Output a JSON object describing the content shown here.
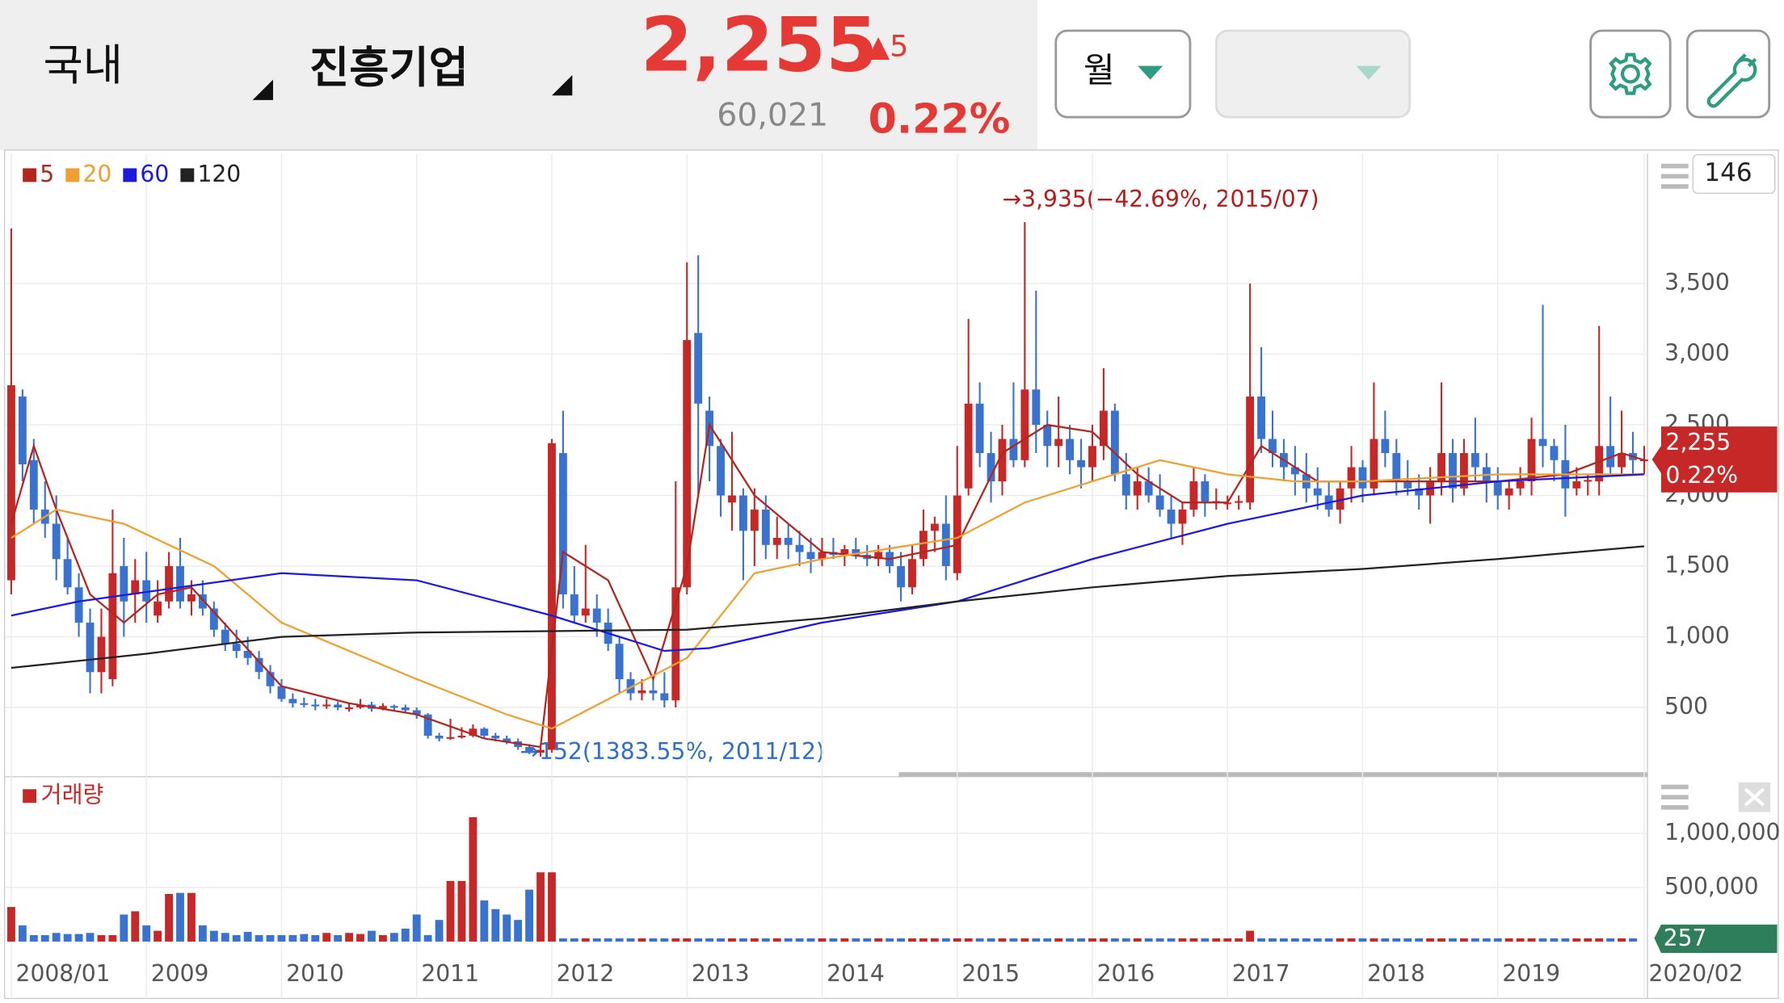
{
  "header": {
    "market": "국내",
    "stock": "진흥기업",
    "price": "2,255",
    "change": "▲5",
    "volume": "60,021",
    "change_pct": "0.22%",
    "period": "월"
  },
  "chart_data": [
    {
      "type": "candlestick",
      "count": 146,
      "up_color": "#c62828",
      "down_color": "#3a72d0",
      "grid": true,
      "last_price_label": "2,255",
      "last_change_label": "0.22%",
      "annotations": [
        {
          "text": "→3,935(−42.69%, 2015/07)"
        },
        {
          "text": "→152(1383.55%, 2011/12)"
        }
      ],
      "xlim": [
        -1,
        146
      ],
      "xticks": [
        {
          "value": 0,
          "label": "2008/01"
        },
        {
          "value": 12,
          "label": "2009"
        },
        {
          "value": 24,
          "label": "2010"
        },
        {
          "value": 36,
          "label": "2011"
        },
        {
          "value": 48,
          "label": "2012"
        },
        {
          "value": 60,
          "label": "2013"
        },
        {
          "value": 72,
          "label": "2014"
        },
        {
          "value": 84,
          "label": "2015"
        },
        {
          "value": 96,
          "label": "2016"
        },
        {
          "value": 108,
          "label": "2017"
        },
        {
          "value": 120,
          "label": "2018"
        },
        {
          "value": 132,
          "label": "2019"
        },
        {
          "value": 145,
          "label": "2020/02"
        }
      ],
      "ylim": [
        50,
        4420
      ],
      "yticks": [
        500,
        {
          "value": 1000,
          "label": "1,000"
        },
        {
          "value": 1500,
          "label": "1,500"
        },
        {
          "value": 2000,
          "label": "2,000"
        },
        {
          "value": 2500,
          "label": "2,500"
        },
        {
          "value": 3000,
          "label": "3,000"
        },
        {
          "value": 3500,
          "label": "3,500"
        }
      ],
      "open": [
        1400,
        2700,
        2250,
        1900,
        1800,
        1550,
        1350,
        1100,
        750,
        700,
        1500,
        1300,
        1400,
        1150,
        1250,
        1500,
        1250,
        1300,
        1200,
        1050,
        950,
        900,
        850,
        750,
        650,
        560,
        530,
        520,
        510,
        520,
        500,
        500,
        520,
        490,
        510,
        500,
        480,
        450,
        300,
        280,
        290,
        300,
        350,
        300,
        280,
        260,
        220,
        180,
        200,
        2300,
        1300,
        1150,
        1200,
        1100,
        950,
        700,
        600,
        620,
        600,
        550,
        1350,
        3150,
        2600,
        2350,
        1950,
        2000,
        1750,
        1900,
        1650,
        1700,
        1650,
        1600,
        1550,
        1600,
        1580,
        1620,
        1580,
        1550,
        1600,
        1500,
        1350,
        1550,
        1750,
        1800,
        1450,
        2050,
        2650,
        2300,
        2100,
        2400,
        2250,
        2750,
        2500,
        2350,
        2400,
        2250,
        2200,
        2350,
        2600,
        2150,
        2000,
        2100,
        2000,
        1900,
        1800,
        1900,
        2100,
        1950,
        1950,
        1950,
        1950,
        2700,
        2400,
        2300,
        2200,
        2150,
        2050,
        2000,
        1900,
        2050,
        2200,
        2050,
        2400,
        2300,
        2100,
        2050,
        2000,
        2100,
        2300,
        2050,
        2300,
        2200,
        2100,
        2000,
        2050,
        2100,
        2400,
        2350,
        2250,
        2050,
        2100,
        2100,
        2350,
        2200,
        2300,
        2250
      ],
      "high": [
        3890,
        2750,
        2400,
        2100,
        2000,
        1700,
        1450,
        1200,
        1200,
        1900,
        1700,
        1550,
        1600,
        1400,
        1600,
        1700,
        1400,
        1400,
        1250,
        1100,
        1050,
        1000,
        900,
        800,
        700,
        600,
        570,
        560,
        560,
        540,
        530,
        560,
        540,
        530,
        520,
        520,
        500,
        460,
        320,
        420,
        360,
        380,
        360,
        320,
        300,
        280,
        240,
        220,
        2400,
        2600,
        1500,
        1650,
        1300,
        1200,
        1000,
        750,
        700,
        700,
        750,
        2100,
        3650,
        3700,
        2700,
        2400,
        2450,
        2050,
        2050,
        2000,
        1850,
        1800,
        1750,
        1700,
        1700,
        1700,
        1650,
        1700,
        1650,
        1650,
        1650,
        1600,
        1650,
        1900,
        1850,
        2000,
        2350,
        3250,
        2800,
        2450,
        2500,
        2800,
        3935,
        3450,
        2600,
        2700,
        2500,
        2400,
        2500,
        2900,
        2650,
        2300,
        2200,
        2200,
        2150,
        2000,
        1950,
        2200,
        2150,
        2050,
        2000,
        2000,
        3500,
        3050,
        2600,
        2400,
        2350,
        2300,
        2200,
        2100,
        2100,
        2350,
        2250,
        2800,
        2600,
        2400,
        2250,
        2150,
        2200,
        2800,
        2400,
        2400,
        2550,
        2300,
        2200,
        2100,
        2200,
        2550,
        3350,
        2400,
        2500,
        2200,
        2150,
        3200,
        2700,
        2600,
        2450,
        2350
      ],
      "low": [
        1300,
        2100,
        1800,
        1700,
        1400,
        1300,
        1000,
        600,
        600,
        650,
        1000,
        1100,
        1100,
        1100,
        1200,
        1200,
        1150,
        1150,
        1000,
        900,
        850,
        800,
        700,
        600,
        540,
        500,
        500,
        480,
        490,
        480,
        470,
        490,
        470,
        480,
        470,
        460,
        420,
        280,
        260,
        270,
        280,
        290,
        280,
        260,
        240,
        200,
        170,
        152,
        180,
        1200,
        1100,
        1100,
        1000,
        900,
        600,
        550,
        550,
        550,
        500,
        500,
        1300,
        2000,
        2100,
        1850,
        1750,
        1400,
        1500,
        1550,
        1550,
        1550,
        1500,
        1450,
        1500,
        1550,
        1500,
        1550,
        1500,
        1500,
        1450,
        1250,
        1300,
        1500,
        1600,
        1400,
        1400,
        2000,
        2200,
        1950,
        2000,
        2200,
        2200,
        2300,
        2200,
        2200,
        2150,
        2050,
        2100,
        2250,
        2100,
        1900,
        1900,
        1950,
        1850,
        1700,
        1650,
        1850,
        1850,
        1900,
        1900,
        1900,
        1900,
        2300,
        2200,
        2100,
        2000,
        1950,
        1900,
        1850,
        1800,
        1950,
        1950,
        2000,
        2200,
        2000,
        2000,
        1900,
        1800,
        2000,
        1950,
        2000,
        2100,
        1950,
        1900,
        1900,
        2000,
        2000,
        2200,
        2100,
        1850,
        2000,
        2000,
        2000,
        2150,
        2150,
        2150,
        2150
      ],
      "close": [
        2780,
        2220,
        1900,
        1800,
        1550,
        1350,
        1100,
        750,
        1000,
        1450,
        1250,
        1400,
        1250,
        1250,
        1500,
        1250,
        1300,
        1200,
        1050,
        950,
        900,
        850,
        750,
        650,
        560,
        530,
        520,
        510,
        520,
        500,
        500,
        520,
        490,
        510,
        500,
        480,
        450,
        300,
        280,
        290,
        300,
        350,
        300,
        280,
        260,
        220,
        180,
        200,
        2370,
        1300,
        1150,
        1200,
        1100,
        950,
        700,
        600,
        620,
        600,
        550,
        1350,
        3100,
        2650,
        2350,
        2000,
        2000,
        1750,
        1900,
        1650,
        1700,
        1650,
        1600,
        1550,
        1600,
        1580,
        1620,
        1580,
        1550,
        1600,
        1500,
        1350,
        1550,
        1750,
        1800,
        1500,
        2000,
        2650,
        2300,
        2100,
        2400,
        2250,
        2750,
        2500,
        2350,
        2400,
        2250,
        2200,
        2350,
        2600,
        2150,
        2000,
        2100,
        2000,
        1900,
        1800,
        1900,
        2100,
        1950,
        1960,
        1950,
        1960,
        2700,
        2400,
        2300,
        2200,
        2150,
        2050,
        2000,
        1900,
        2050,
        2200,
        2050,
        2400,
        2300,
        2100,
        2050,
        2000,
        2100,
        2300,
        2050,
        2300,
        2200,
        2100,
        2000,
        2050,
        2100,
        2400,
        2350,
        2250,
        2050,
        2100,
        2110,
        2350,
        2200,
        2300,
        2250,
        2255
      ],
      "series": [
        {
          "name": "5",
          "color": "#b3261e",
          "x": [
            0,
            2,
            4,
            7,
            10,
            13,
            16,
            20,
            24,
            30,
            36,
            42,
            47,
            49,
            53,
            57,
            60,
            62,
            66,
            72,
            78,
            84,
            88,
            92,
            96,
            100,
            104,
            108,
            111,
            116,
            120,
            126,
            132,
            138,
            143,
            145
          ],
          "values": [
            1800,
            2350,
            1900,
            1300,
            1100,
            1300,
            1350,
            1000,
            650,
            530,
            450,
            280,
            220,
            1600,
            1400,
            700,
            1500,
            2500,
            2000,
            1600,
            1550,
            1650,
            2300,
            2500,
            2450,
            2150,
            1950,
            1950,
            2350,
            2100,
            2100,
            2100,
            2100,
            2150,
            2300,
            2250
          ]
        },
        {
          "name": "20",
          "color": "#f0a030",
          "x": [
            0,
            4,
            10,
            18,
            24,
            36,
            44,
            48,
            54,
            60,
            66,
            72,
            84,
            90,
            96,
            102,
            108,
            114,
            120,
            132,
            145
          ],
          "values": [
            1700,
            1900,
            1800,
            1500,
            1100,
            700,
            450,
            350,
            600,
            850,
            1450,
            1550,
            1700,
            1950,
            2100,
            2250,
            2150,
            2100,
            2100,
            2150,
            2150
          ]
        },
        {
          "name": "60",
          "color": "#1a1ae0",
          "x": [
            0,
            6,
            24,
            36,
            48,
            58,
            62,
            72,
            84,
            96,
            108,
            120,
            132,
            145
          ],
          "values": [
            1150,
            1250,
            1450,
            1400,
            1150,
            900,
            920,
            1100,
            1250,
            1550,
            1800,
            2000,
            2100,
            2150
          ]
        },
        {
          "name": "120",
          "color": "#222222",
          "x": [
            0,
            12,
            24,
            36,
            48,
            60,
            72,
            84,
            96,
            108,
            120,
            132,
            145
          ],
          "values": [
            780,
            880,
            1000,
            1030,
            1040,
            1050,
            1130,
            1250,
            1350,
            1430,
            1480,
            1550,
            1640
          ]
        }
      ]
    },
    {
      "type": "bar",
      "title": "거래량",
      "color": "#c62828",
      "last_label": "257",
      "ylim": [
        0,
        1450000
      ],
      "yticks": [
        {
          "value": 500000,
          "label": "500,000"
        },
        {
          "value": 1000000,
          "label": "1,000,000"
        }
      ],
      "values": [
        320000,
        150000,
        60000,
        60000,
        80000,
        70000,
        70000,
        80000,
        60000,
        60000,
        250000,
        280000,
        150000,
        100000,
        440000,
        450000,
        450000,
        150000,
        100000,
        80000,
        60000,
        90000,
        60000,
        60000,
        60000,
        60000,
        70000,
        60000,
        80000,
        60000,
        80000,
        70000,
        100000,
        60000,
        80000,
        120000,
        250000,
        60000,
        200000,
        560000,
        560000,
        1150000,
        380000,
        300000,
        250000,
        200000,
        480000,
        640000,
        640000,
        30000,
        30000,
        30000,
        30000,
        30000,
        30000,
        30000,
        30000,
        30000,
        30000,
        30000,
        30000,
        30000,
        30000,
        30000,
        30000,
        30000,
        30000,
        30000,
        30000,
        30000,
        30000,
        30000,
        30000,
        30000,
        30000,
        30000,
        30000,
        30000,
        30000,
        30000,
        30000,
        30000,
        30000,
        30000,
        30000,
        30000,
        30000,
        30000,
        30000,
        30000,
        30000,
        30000,
        30000,
        30000,
        30000,
        30000,
        30000,
        30000,
        30000,
        30000,
        30000,
        30000,
        30000,
        30000,
        30000,
        30000,
        30000,
        30000,
        30000,
        30000,
        100000,
        30000,
        30000,
        30000,
        30000,
        30000,
        30000,
        30000,
        30000,
        30000,
        30000,
        30000,
        30000,
        30000,
        30000,
        30000,
        30000,
        30000,
        30000,
        30000,
        30000,
        30000,
        30000,
        30000,
        30000,
        30000,
        30000,
        30000,
        30000,
        30000,
        30000,
        30000,
        30000,
        30000,
        30000,
        257
      ]
    }
  ]
}
